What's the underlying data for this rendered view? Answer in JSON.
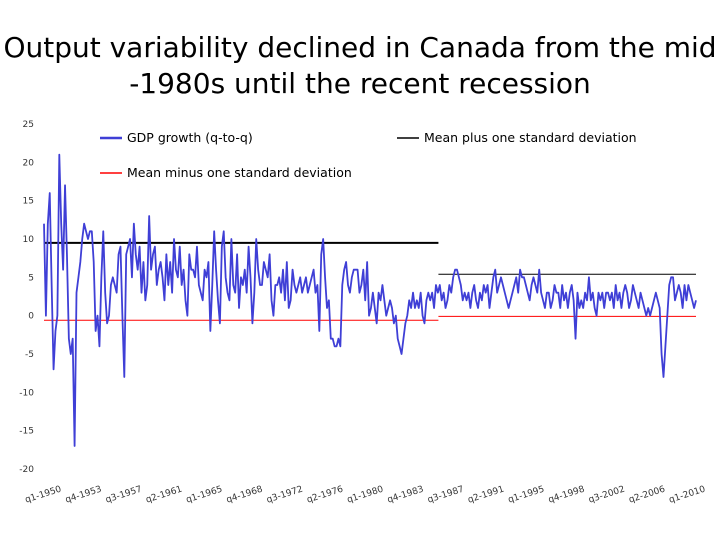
{
  "slide": {
    "title_line1": "Output variability declined in Canada from the mid",
    "title_line2": "-1980s until the recent recession"
  },
  "chart_data": {
    "type": "line",
    "title": "Output variability declined in Canada from the mid -1980s until the recent recession",
    "xlabel": "",
    "ylabel": "",
    "ylim": [
      -20,
      25
    ],
    "yticks": [
      25,
      20,
      15,
      10,
      5,
      0,
      -5,
      -10,
      -15,
      -20
    ],
    "x_tick_labels": [
      "q1-1950",
      "q4-1953",
      "q3-1957",
      "q2-1961",
      "q1-1965",
      "q4-1968",
      "q3-1972",
      "q2-1976",
      "q1-1980",
      "q4-1983",
      "q3-1987",
      "q2-1991",
      "q1-1995",
      "q4-1998",
      "q3-2002",
      "q2-2006",
      "q1-2010"
    ],
    "x_start": "q1-1950",
    "x_end": "q4-2010",
    "grid": false,
    "legend": "top, inside plot",
    "series": [
      {
        "name": "GDP growth (q-to-q)",
        "color": "#3f3fd6",
        "values": [
          12,
          0,
          12,
          16,
          4,
          -7,
          -2,
          0,
          21,
          12,
          6,
          17,
          8,
          -3,
          -5,
          -3,
          -17,
          3,
          5,
          7,
          10,
          12,
          11,
          10,
          11,
          11,
          7,
          -2,
          0,
          -4,
          5,
          11,
          3,
          -1,
          0,
          4,
          5,
          4,
          3,
          8,
          9,
          0,
          -8,
          8,
          9,
          10,
          5,
          12,
          8,
          6,
          9,
          3,
          7,
          2,
          4,
          13,
          6,
          8,
          9,
          4,
          6,
          7,
          5,
          2,
          8,
          4,
          7,
          3,
          10,
          6,
          5,
          9,
          4,
          6,
          2,
          0,
          8,
          6,
          6,
          5,
          9,
          4,
          3,
          2,
          6,
          5,
          7,
          -2,
          4,
          11,
          6,
          2,
          -1,
          9,
          11,
          5,
          3,
          2,
          10,
          4,
          3,
          8,
          1,
          5,
          4,
          6,
          3,
          9,
          5,
          -1,
          3,
          10,
          6,
          4,
          4,
          7,
          6,
          5,
          8,
          2,
          0,
          4,
          4,
          5,
          3,
          6,
          2,
          7,
          1,
          2,
          6,
          4,
          3,
          4,
          5,
          3,
          4,
          5,
          3,
          4,
          5,
          6,
          3,
          4,
          -2,
          8,
          10,
          5,
          1,
          2,
          -3,
          -3,
          -4,
          -4,
          -3,
          -4,
          4,
          6,
          7,
          4,
          3,
          5,
          6,
          6,
          6,
          3,
          4,
          6,
          2,
          7,
          0,
          1,
          3,
          1,
          -1,
          3,
          2,
          4,
          2,
          0,
          1,
          2,
          1,
          -1,
          0,
          -3,
          -4,
          -5,
          -3,
          -1,
          0,
          2,
          1,
          3,
          1,
          2,
          1,
          3,
          0,
          -1,
          2,
          3,
          2,
          3,
          1,
          4,
          3,
          4,
          2,
          3,
          1,
          2,
          4,
          3,
          5,
          6,
          6,
          5,
          4,
          2,
          3,
          2,
          3,
          1,
          3,
          4,
          2,
          1,
          3,
          2,
          4,
          3,
          4,
          1,
          3,
          5,
          6,
          3,
          4,
          5,
          4,
          3,
          2,
          1,
          2,
          3,
          4,
          5,
          3,
          6,
          5,
          5,
          4,
          3,
          2,
          4,
          5,
          4,
          3,
          6,
          3,
          2,
          1,
          3,
          3,
          1,
          2,
          4,
          3,
          3,
          1,
          4,
          2,
          3,
          1,
          3,
          4,
          2,
          -3,
          3,
          1,
          2,
          1,
          3,
          2,
          5,
          2,
          3,
          1,
          0,
          3,
          2,
          3,
          1,
          3,
          3,
          2,
          3,
          1,
          4,
          2,
          3,
          1,
          3,
          4,
          3,
          1,
          2,
          4,
          3,
          2,
          1,
          3,
          2,
          1,
          0,
          1,
          0,
          1,
          2,
          3,
          2,
          1,
          -5,
          -8,
          -4,
          0,
          4,
          5,
          5,
          2,
          3,
          4,
          3,
          1,
          4,
          2,
          4,
          3,
          2,
          1,
          2
        ]
      },
      {
        "name": "Mean plus one standard deviation",
        "color": "#000000",
        "segments": [
          {
            "from": "q1-1950",
            "to": "q4-1986",
            "value": 9.5
          },
          {
            "from": "q4-1986",
            "to": "q4-2010",
            "value": 5.4
          }
        ]
      },
      {
        "name": "Mean minus one standard deviation",
        "color": "#ff0000",
        "segments": [
          {
            "from": "q1-1950",
            "to": "q4-1986",
            "value": -0.6
          },
          {
            "from": "q4-1986",
            "to": "q4-2010",
            "value": -0.1
          }
        ]
      }
    ]
  }
}
